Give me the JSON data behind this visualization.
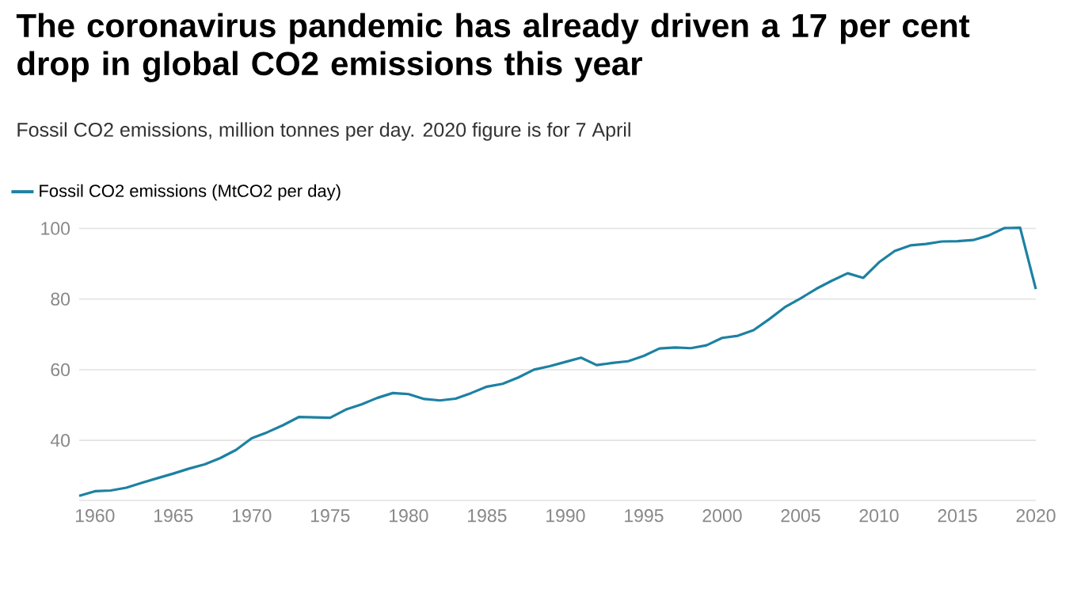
{
  "chart_data": {
    "type": "line",
    "title": "The coronavirus pandemic has already driven a 17 per cent drop in global CO2 emissions this year",
    "subtitle": "Fossil CO2 emissions, million tonnes per day. 2020 figure is for 7 April",
    "x": [
      1959,
      1960,
      1961,
      1962,
      1963,
      1964,
      1965,
      1966,
      1967,
      1968,
      1969,
      1970,
      1971,
      1972,
      1973,
      1974,
      1975,
      1976,
      1977,
      1978,
      1979,
      1980,
      1981,
      1982,
      1983,
      1984,
      1985,
      1986,
      1987,
      1988,
      1989,
      1990,
      1991,
      1992,
      1993,
      1994,
      1995,
      1996,
      1997,
      1998,
      1999,
      2000,
      2001,
      2002,
      2003,
      2004,
      2005,
      2006,
      2007,
      2008,
      2009,
      2010,
      2011,
      2012,
      2013,
      2014,
      2015,
      2016,
      2017,
      2018,
      2019,
      2020
    ],
    "series": [
      {
        "name": "Fossil CO2 emissions (MtCO2 per day)",
        "color": "#1d81a2",
        "values": [
          24.3,
          25.6,
          25.8,
          26.6,
          28.0,
          29.3,
          30.6,
          32.0,
          33.2,
          35.0,
          37.3,
          40.6,
          42.3,
          44.3,
          46.6,
          46.5,
          46.4,
          48.7,
          50.2,
          52.0,
          53.4,
          53.1,
          51.7,
          51.3,
          51.8,
          53.4,
          55.2,
          56.0,
          57.8,
          60.0,
          61.0,
          62.2,
          63.4,
          61.3,
          61.9,
          62.4,
          63.9,
          66.0,
          66.3,
          66.1,
          66.9,
          69.0,
          69.6,
          71.2,
          74.3,
          77.7,
          80.2,
          82.9,
          85.2,
          87.3,
          86.0,
          90.4,
          93.6,
          95.2,
          95.6,
          96.3,
          96.4,
          96.7,
          98.0,
          100.1,
          100.2,
          82.8
        ]
      }
    ],
    "xlim": [
      1959,
      2020
    ],
    "ylim": [
      23,
      101
    ],
    "xticks": [
      1960,
      1965,
      1970,
      1975,
      1980,
      1985,
      1990,
      1995,
      2000,
      2005,
      2010,
      2015,
      2020
    ],
    "yticks": [
      40,
      60,
      80,
      100
    ],
    "grid": "y",
    "legend": "top left",
    "marker": "none",
    "line_style": "solid"
  }
}
